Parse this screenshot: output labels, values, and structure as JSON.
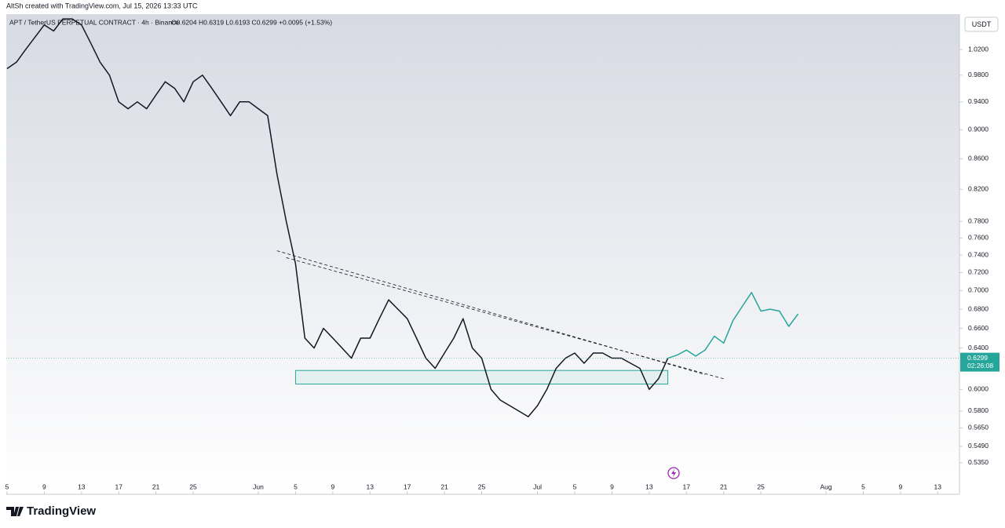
{
  "header": "AltSh created with TradingView.com, Jul 15, 2026 13:33 UTC",
  "legend": "APT / TetherUS PERPETUAL CONTRACT · 4h · Binance",
  "ohlc": "O0.6204 H0.6319 L0.6193 C0.6299 +0.0095 (+1.53%)",
  "currency": "USDT",
  "brand": "TradingView",
  "chart_data": {
    "type": "line",
    "log_scale": true,
    "grid": false,
    "xlim": [
      "May 5",
      "Aug 15"
    ],
    "ylim": [
      0.522,
      1.078
    ],
    "yticks": [
      {
        "value": 1.02,
        "label": "1.0200"
      },
      {
        "value": 0.98,
        "label": "0.9800"
      },
      {
        "value": 0.94,
        "label": "0.9400"
      },
      {
        "value": 0.9,
        "label": "0.9000"
      },
      {
        "value": 0.86,
        "label": "0.8600"
      },
      {
        "value": 0.82,
        "label": "0.8200"
      },
      {
        "value": 0.78,
        "label": "0.7800"
      },
      {
        "value": 0.76,
        "label": "0.7600"
      },
      {
        "value": 0.74,
        "label": "0.7400"
      },
      {
        "value": 0.72,
        "label": "0.7200"
      },
      {
        "value": 0.7,
        "label": "0.7000"
      },
      {
        "value": 0.68,
        "label": "0.6800"
      },
      {
        "value": 0.66,
        "label": "0.6600"
      },
      {
        "value": 0.64,
        "label": "0.6400"
      },
      {
        "value": 0.6,
        "label": "0.6000"
      },
      {
        "value": 0.58,
        "label": "0.5800"
      },
      {
        "value": 0.565,
        "label": "0.5650"
      },
      {
        "value": 0.549,
        "label": "0.5490"
      },
      {
        "value": 0.535,
        "label": "0.5350"
      }
    ],
    "xticks": [
      {
        "value": "May 5",
        "label": "5"
      },
      {
        "value": "May 9",
        "label": "9"
      },
      {
        "value": "May 13",
        "label": "13"
      },
      {
        "value": "May 17",
        "label": "17"
      },
      {
        "value": "May 21",
        "label": "21"
      },
      {
        "value": "May 25",
        "label": "25"
      },
      {
        "value": "Jun 1",
        "label": "Jun"
      },
      {
        "value": "Jun 5",
        "label": "5"
      },
      {
        "value": "Jun 9",
        "label": "9"
      },
      {
        "value": "Jun 13",
        "label": "13"
      },
      {
        "value": "Jun 17",
        "label": "17"
      },
      {
        "value": "Jun 21",
        "label": "21"
      },
      {
        "value": "Jun 25",
        "label": "25"
      },
      {
        "value": "Jul 1",
        "label": "Jul"
      },
      {
        "value": "Jul 5",
        "label": "5"
      },
      {
        "value": "Jul 9",
        "label": "9"
      },
      {
        "value": "Jul 13",
        "label": "13"
      },
      {
        "value": "Jul 17",
        "label": "17"
      },
      {
        "value": "Jul 21",
        "label": "21"
      },
      {
        "value": "Jul 25",
        "label": "25"
      },
      {
        "value": "Aug 1",
        "label": "Aug"
      },
      {
        "value": "Aug 5",
        "label": "5"
      },
      {
        "value": "Aug 9",
        "label": "9"
      },
      {
        "value": "Aug 13",
        "label": "13"
      }
    ],
    "x": [
      "May 5",
      "May 6",
      "May 7",
      "May 8",
      "May 9",
      "May 10",
      "May 11",
      "May 12",
      "May 13",
      "May 14",
      "May 15",
      "May 16",
      "May 17",
      "May 18",
      "May 19",
      "May 20",
      "May 21",
      "May 22",
      "May 23",
      "May 24",
      "May 25",
      "May 26",
      "May 27",
      "May 28",
      "May 29",
      "May 30",
      "May 31",
      "Jun 1",
      "Jun 2",
      "Jun 3",
      "Jun 4",
      "Jun 5",
      "Jun 6",
      "Jun 7",
      "Jun 8",
      "Jun 9",
      "Jun 10",
      "Jun 11",
      "Jun 12",
      "Jun 13",
      "Jun 14",
      "Jun 15",
      "Jun 16",
      "Jun 17",
      "Jun 18",
      "Jun 19",
      "Jun 20",
      "Jun 21",
      "Jun 22",
      "Jun 23",
      "Jun 24",
      "Jun 25",
      "Jun 26",
      "Jun 27",
      "Jun 28",
      "Jun 29",
      "Jun 30",
      "Jul 1",
      "Jul 2",
      "Jul 3",
      "Jul 4",
      "Jul 5",
      "Jul 6",
      "Jul 7",
      "Jul 8",
      "Jul 9",
      "Jul 10",
      "Jul 11",
      "Jul 12",
      "Jul 13",
      "Jul 14",
      "Jul 15",
      "Jul 16",
      "Jul 17",
      "Jul 18",
      "Jul 19",
      "Jul 20",
      "Jul 21",
      "Jul 22",
      "Jul 23",
      "Jul 24",
      "Jul 25",
      "Jul 26",
      "Jul 27",
      "Jul 28",
      "Jul 29"
    ],
    "series": [
      {
        "color": "#131722",
        "values": [
          0.99,
          1.0,
          1.02,
          1.04,
          1.06,
          1.05,
          1.07,
          1.07,
          1.06,
          1.03,
          1.0,
          0.98,
          0.94,
          0.93,
          0.94,
          0.93,
          0.95,
          0.97,
          0.96,
          0.94,
          0.97,
          0.98,
          0.96,
          0.94,
          0.92,
          0.94,
          0.94,
          0.93,
          0.92,
          0.84,
          0.78,
          0.73,
          0.65,
          0.64,
          0.66,
          0.65,
          0.64,
          0.63,
          0.65,
          0.65,
          0.67,
          0.69,
          0.68,
          0.67,
          0.65,
          0.63,
          0.62,
          0.635,
          0.65,
          0.67,
          0.64,
          0.63,
          0.6,
          0.59,
          0.585,
          0.58,
          0.575,
          0.585,
          0.6,
          0.62,
          0.63,
          0.635,
          0.625,
          0.635,
          0.635,
          0.63,
          0.63,
          0.625,
          0.62,
          0.6,
          0.61,
          0.6299,
          null,
          null,
          null,
          null,
          null,
          null,
          null,
          null,
          null,
          null,
          null,
          null,
          null,
          null
        ]
      },
      {
        "color": "#26a69a",
        "values": [
          null,
          null,
          null,
          null,
          null,
          null,
          null,
          null,
          null,
          null,
          null,
          null,
          null,
          null,
          null,
          null,
          null,
          null,
          null,
          null,
          null,
          null,
          null,
          null,
          null,
          null,
          null,
          null,
          null,
          null,
          null,
          null,
          null,
          null,
          null,
          null,
          null,
          null,
          null,
          null,
          null,
          null,
          null,
          null,
          null,
          null,
          null,
          null,
          null,
          null,
          null,
          null,
          null,
          null,
          null,
          null,
          null,
          null,
          null,
          null,
          null,
          null,
          null,
          null,
          null,
          null,
          null,
          null,
          null,
          null,
          null,
          0.6299,
          0.633,
          0.638,
          0.632,
          0.638,
          0.652,
          0.645,
          0.668,
          0.683,
          0.698,
          0.678,
          0.68,
          0.678,
          0.662,
          0.675
        ]
      }
    ],
    "zone": {
      "x": [
        "Jun 5",
        "Jul 15"
      ],
      "y": [
        0.605,
        0.618
      ],
      "color": "#26a69a"
    },
    "trendlines": [
      {
        "x": [
          "Jun 3",
          "Jul 19"
        ],
        "y": [
          0.745,
          0.614
        ]
      },
      {
        "x": [
          "Jun 4",
          "Jul 21"
        ],
        "y": [
          0.737,
          0.61
        ]
      }
    ],
    "last_price": {
      "value": 0.6299,
      "countdown": "02:26:08",
      "color": "#26a69a"
    }
  }
}
